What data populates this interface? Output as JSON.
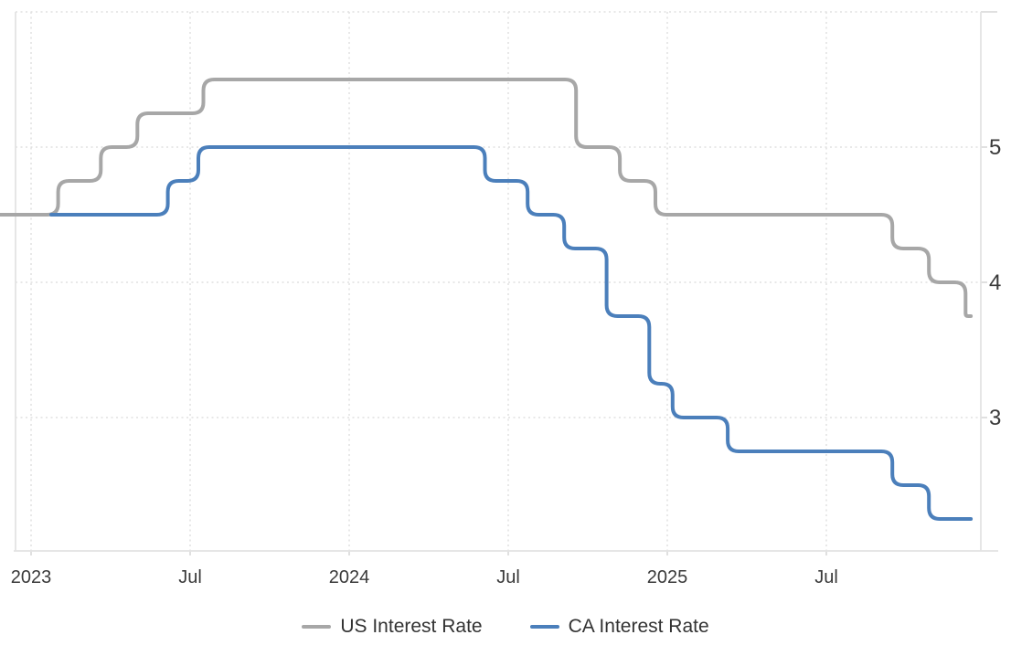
{
  "chart_data": {
    "type": "line",
    "title": "",
    "xlabel": "",
    "ylabel": "",
    "unit": "percent",
    "ylim": [
      2,
      6
    ],
    "grid": "dotted",
    "legend_position": "bottom-center",
    "y_axis": {
      "side": "right",
      "ticks": [
        {
          "value": 3,
          "label": "3"
        },
        {
          "value": 4,
          "label": "4"
        },
        {
          "value": 5,
          "label": "5"
        },
        {
          "value": 6,
          "label": ""
        }
      ]
    },
    "x_axis": {
      "ticks": [
        {
          "m": 0,
          "label": "2023"
        },
        {
          "m": 6,
          "label": "Jul"
        },
        {
          "m": 12,
          "label": "2024"
        },
        {
          "m": 18,
          "label": "Jul"
        },
        {
          "m": 24,
          "label": "2025"
        },
        {
          "m": 30,
          "label": "Jul"
        }
      ]
    },
    "x_start_m": -1.17,
    "x_end_m": 35.45,
    "series": [
      {
        "name": "US Interest Rate",
        "color": "#a7a7a7",
        "data_name": "us-interest-rate-line",
        "start_m": -1.17,
        "start_value": 4.5,
        "changes": [
          {
            "date": "2023-02-01",
            "m": 1.02,
            "value": 4.75
          },
          {
            "date": "2023-03-22",
            "m": 2.63,
            "value": 5.0
          },
          {
            "date": "2023-05-03",
            "m": 4.01,
            "value": 5.25
          },
          {
            "date": "2023-07-26",
            "m": 6.5,
            "value": 5.5
          },
          {
            "date": "2024-09-18",
            "m": 20.56,
            "value": 5.0
          },
          {
            "date": "2024-11-07",
            "m": 22.21,
            "value": 4.75
          },
          {
            "date": "2024-12-18",
            "m": 23.55,
            "value": 4.5
          },
          {
            "date": "2025-09-17",
            "m": 32.49,
            "value": 4.25
          },
          {
            "date": "2025-10-29",
            "m": 33.87,
            "value": 4.0
          },
          {
            "date": "2025-12-10",
            "m": 35.25,
            "value": 3.75
          }
        ]
      },
      {
        "name": "CA Interest Rate",
        "color": "#4b7fbb",
        "data_name": "ca-interest-rate-line",
        "start_m": 0.76,
        "start_value": 4.5,
        "changes": [
          {
            "date": "2023-06-07",
            "m": 5.16,
            "value": 4.75
          },
          {
            "date": "2023-07-12",
            "m": 6.31,
            "value": 5.0
          },
          {
            "date": "2024-06-05",
            "m": 17.12,
            "value": 4.75
          },
          {
            "date": "2024-07-24",
            "m": 18.73,
            "value": 4.5
          },
          {
            "date": "2024-09-04",
            "m": 20.11,
            "value": 4.25
          },
          {
            "date": "2024-10-23",
            "m": 21.71,
            "value": 3.75
          },
          {
            "date": "2024-12-11",
            "m": 23.32,
            "value": 3.25
          },
          {
            "date": "2025-01-29",
            "m": 24.2,
            "value": 3.0
          },
          {
            "date": "2025-03-12",
            "m": 26.28,
            "value": 2.75
          },
          {
            "date": "2025-09-17",
            "m": 32.49,
            "value": 2.5
          },
          {
            "date": "2025-10-29",
            "m": 33.87,
            "value": 2.25
          }
        ]
      }
    ]
  }
}
